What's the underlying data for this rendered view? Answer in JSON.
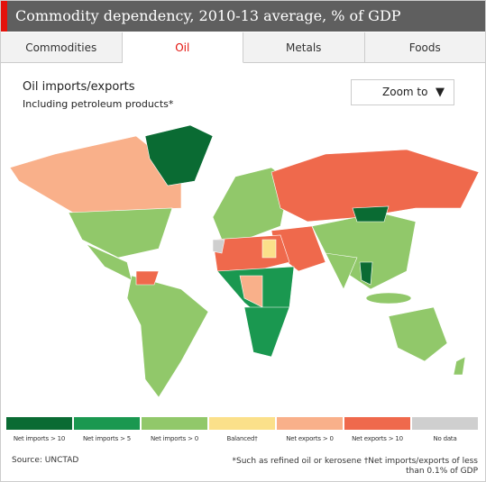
{
  "header": {
    "title": "Commodity dependency, 2010-13 average, % of GDP"
  },
  "tabs": [
    "Commodities",
    "Oil",
    "Metals",
    "Foods"
  ],
  "active_tab": 1,
  "map": {
    "title": "Oil imports/exports",
    "subtitle": "Including petroleum products*",
    "zoom": "Zoom to"
  },
  "legend": [
    {
      "label": "Net imports > 10",
      "color": "#0a6b33"
    },
    {
      "label": "Net imports > 5",
      "color": "#1a9850"
    },
    {
      "label": "Net imports > 0",
      "color": "#91c86a"
    },
    {
      "label": "Balanced†",
      "color": "#fbe08a"
    },
    {
      "label": "Net exports > 0",
      "color": "#f9b08a"
    },
    {
      "label": "Net exports > 10",
      "color": "#ef694c"
    },
    {
      "label": "No data",
      "color": "#cfcfcf"
    }
  ],
  "source": "Source: UNCTAD",
  "footnote": "*Such as refined oil or kerosene †Net imports/exports of less than 0.1% of GDP"
}
